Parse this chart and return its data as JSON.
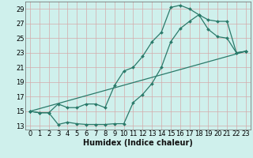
{
  "xlabel": "Humidex (Indice chaleur)",
  "bg_color": "#cff0ec",
  "grid_color": "#d4aaaa",
  "line_color": "#2a7a6a",
  "xlim": [
    -0.5,
    23.5
  ],
  "ylim": [
    12.5,
    30.0
  ],
  "xticks": [
    0,
    1,
    2,
    3,
    4,
    5,
    6,
    7,
    8,
    9,
    10,
    11,
    12,
    13,
    14,
    15,
    16,
    17,
    18,
    19,
    20,
    21,
    22,
    23
  ],
  "yticks": [
    13,
    15,
    17,
    19,
    21,
    23,
    25,
    27,
    29
  ],
  "line1_x": [
    0,
    1,
    2,
    3,
    4,
    5,
    6,
    7,
    8,
    9,
    10,
    11,
    12,
    13,
    14,
    15,
    16,
    17,
    18,
    19,
    20,
    21,
    22,
    23
  ],
  "line1_y": [
    15,
    14.8,
    14.8,
    13.2,
    13.5,
    13.3,
    13.2,
    13.2,
    13.2,
    13.3,
    13.3,
    16.2,
    17.3,
    18.8,
    21.0,
    24.5,
    26.3,
    27.3,
    28.2,
    26.2,
    25.2,
    25.0,
    23.0,
    23.2
  ],
  "line2_x": [
    0,
    1,
    2,
    3,
    4,
    5,
    6,
    7,
    8,
    9,
    10,
    11,
    12,
    13,
    14,
    15,
    16,
    17,
    18,
    19,
    20,
    21,
    22,
    23
  ],
  "line2_y": [
    15,
    14.8,
    14.8,
    16.0,
    15.5,
    15.5,
    16.0,
    16.0,
    15.5,
    18.5,
    20.5,
    21.0,
    22.5,
    24.5,
    25.8,
    29.2,
    29.5,
    29.0,
    28.2,
    27.5,
    27.3,
    27.3,
    23.0,
    23.2
  ],
  "line3_x": [
    0,
    23
  ],
  "line3_y": [
    15,
    23.2
  ],
  "xlabel_fontsize": 7,
  "tick_fontsize": 6,
  "linewidth": 0.9,
  "markersize": 2.0
}
